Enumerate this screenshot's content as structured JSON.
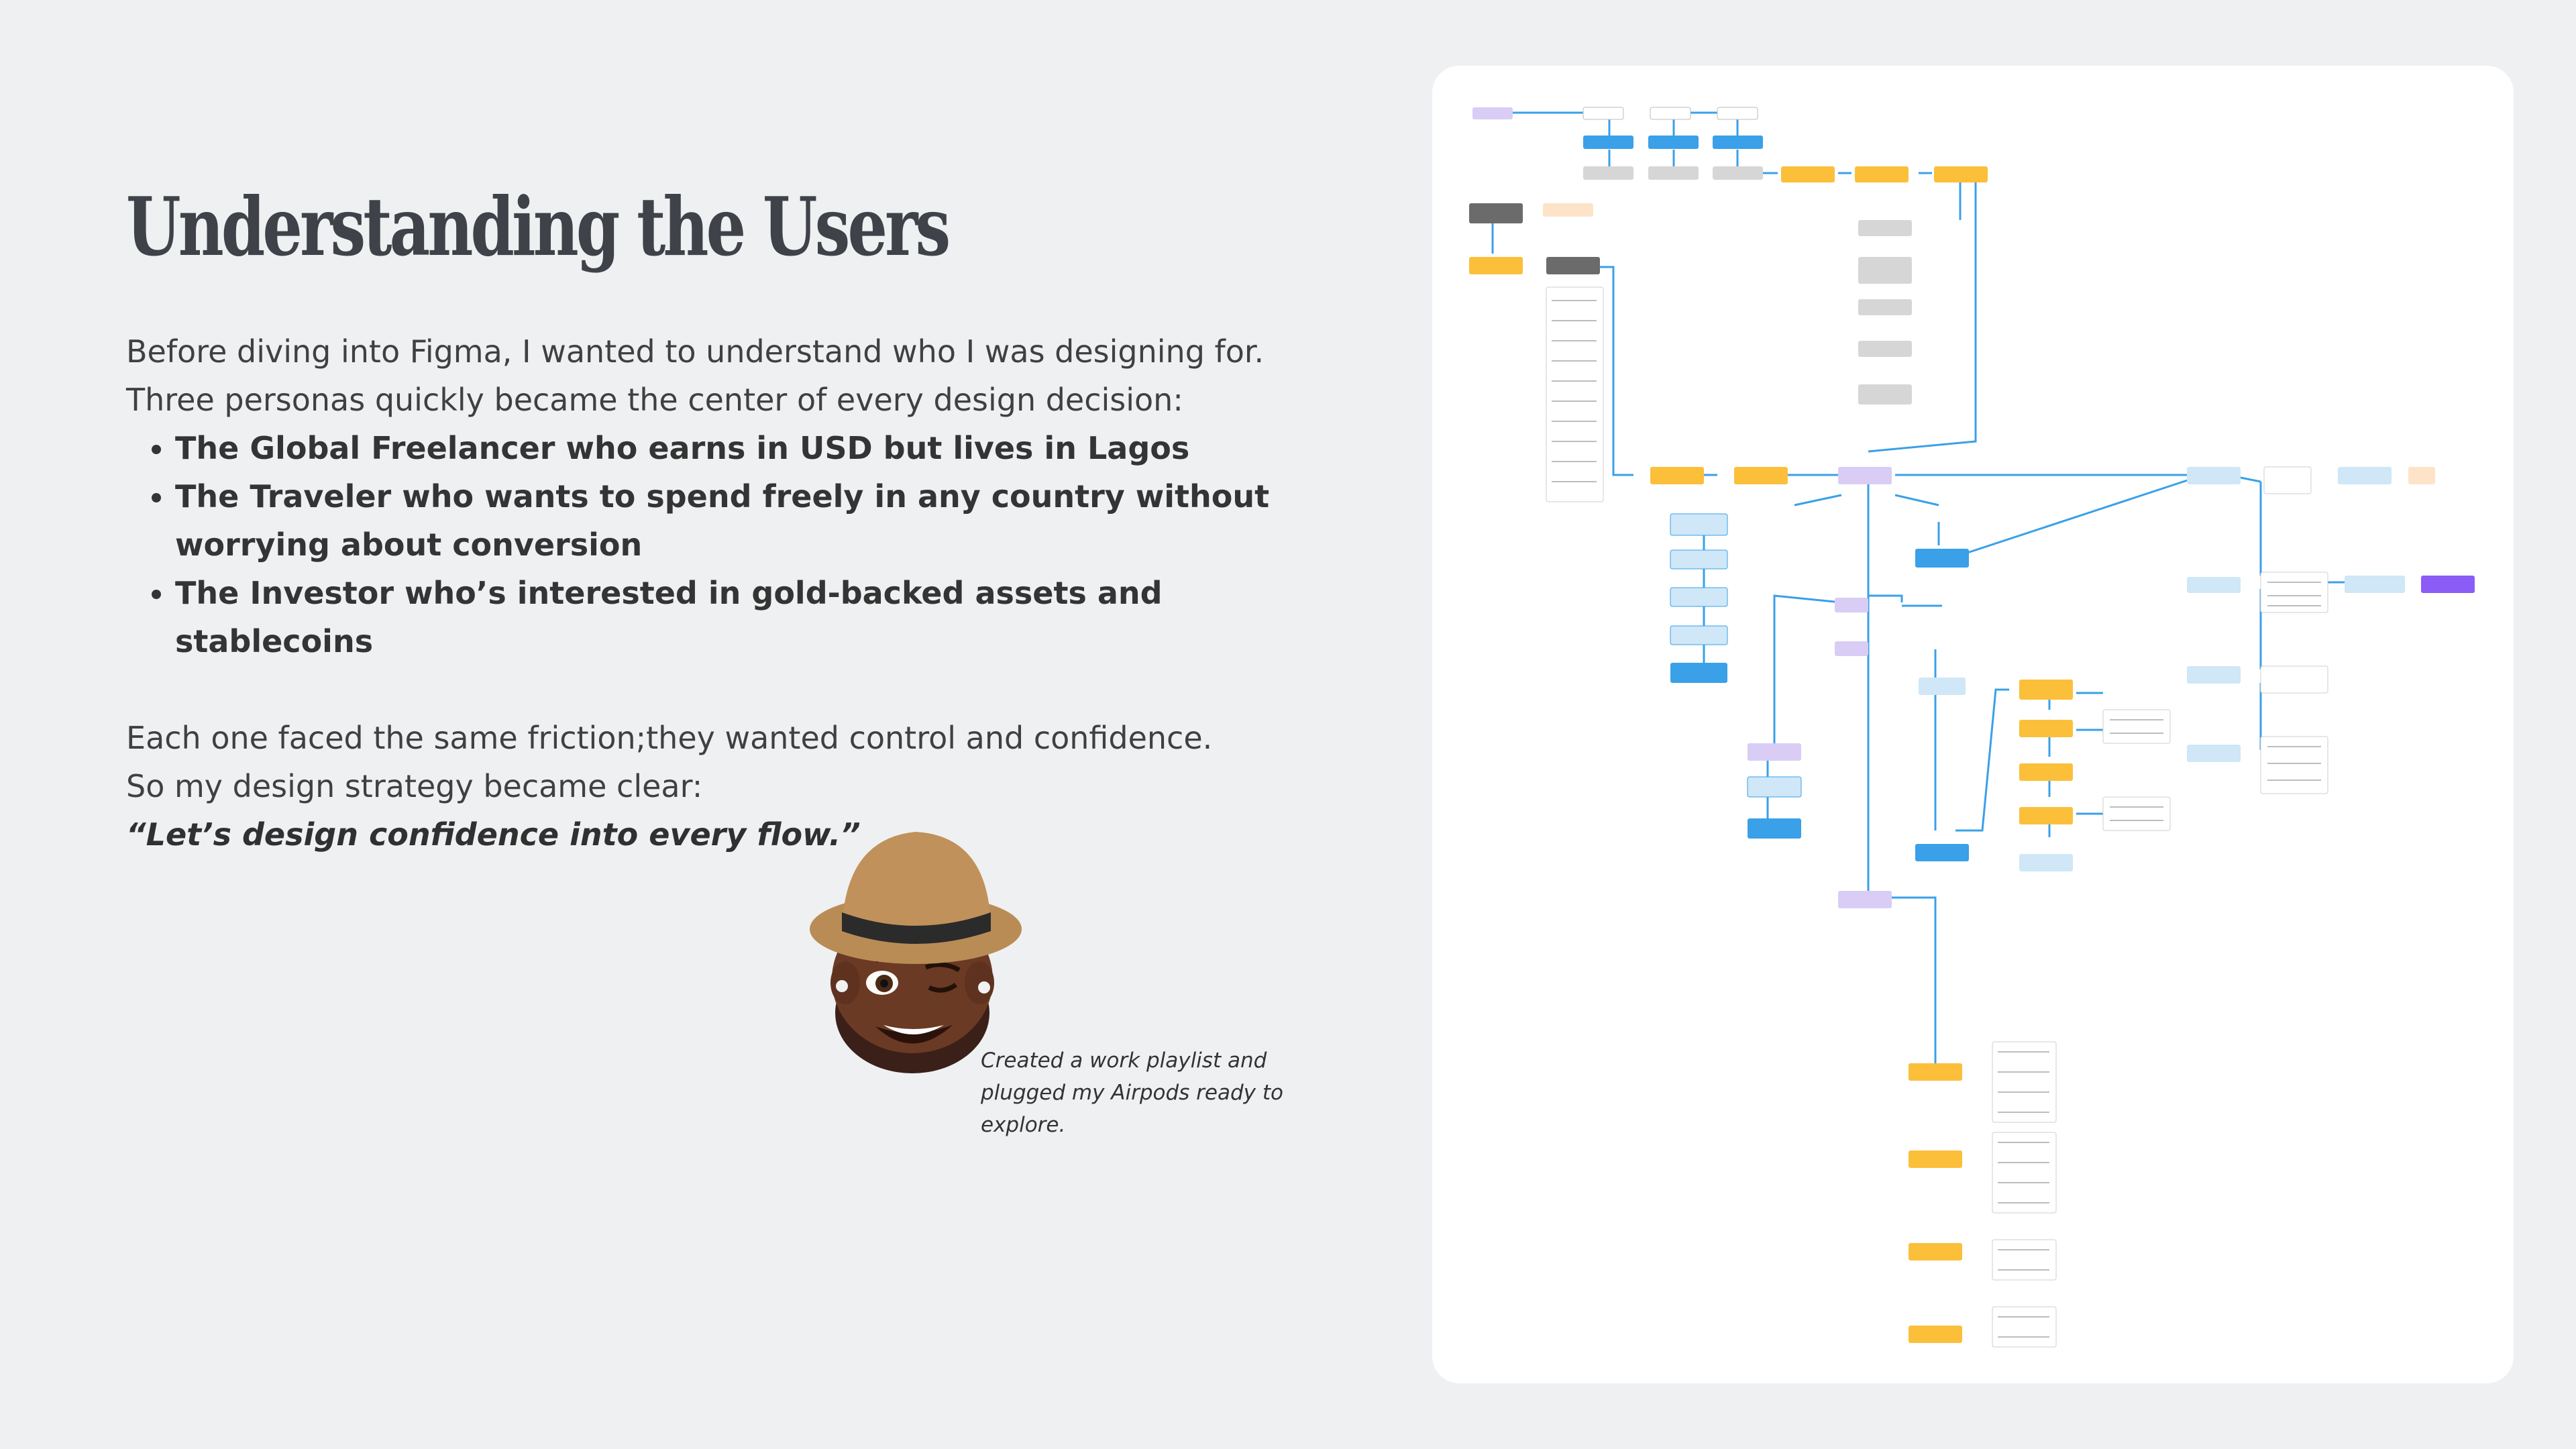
{
  "heading": "Understanding the Users",
  "intro": {
    "line1": "Before diving into Figma, I wanted to understand who I was designing for.",
    "line2": "Three personas quickly became the center of every design decision:"
  },
  "personas": [
    "The Global Freelancer who earns in USD but lives in Lagos",
    "The Traveler who wants to spend freely in any country without worrying about conversion",
    "The Investor who’s interested in gold-backed assets and stablecoins"
  ],
  "closing": {
    "line1": "Each one faced the same friction;they wanted control and confidence.",
    "line2": "So my design strategy became clear:",
    "quote": "“Let’s design confidence into every flow.”"
  },
  "caption": "Created a work playlist and plugged my Airpods ready to explore.",
  "colors": {
    "background": "#eff0f2",
    "card": "#ffffff",
    "yellow_node": "#fbbf3a",
    "blue_node": "#3aa0e8",
    "light_blue_node": "#cfe7f7",
    "lavender_node": "#d9cdf5",
    "purple_node": "#8b5cf6",
    "gray_node": "#d6d6d6",
    "dark_gray_node": "#6b6b6b",
    "peach_node": "#fde3c8",
    "connector": "#3aa0e8"
  }
}
